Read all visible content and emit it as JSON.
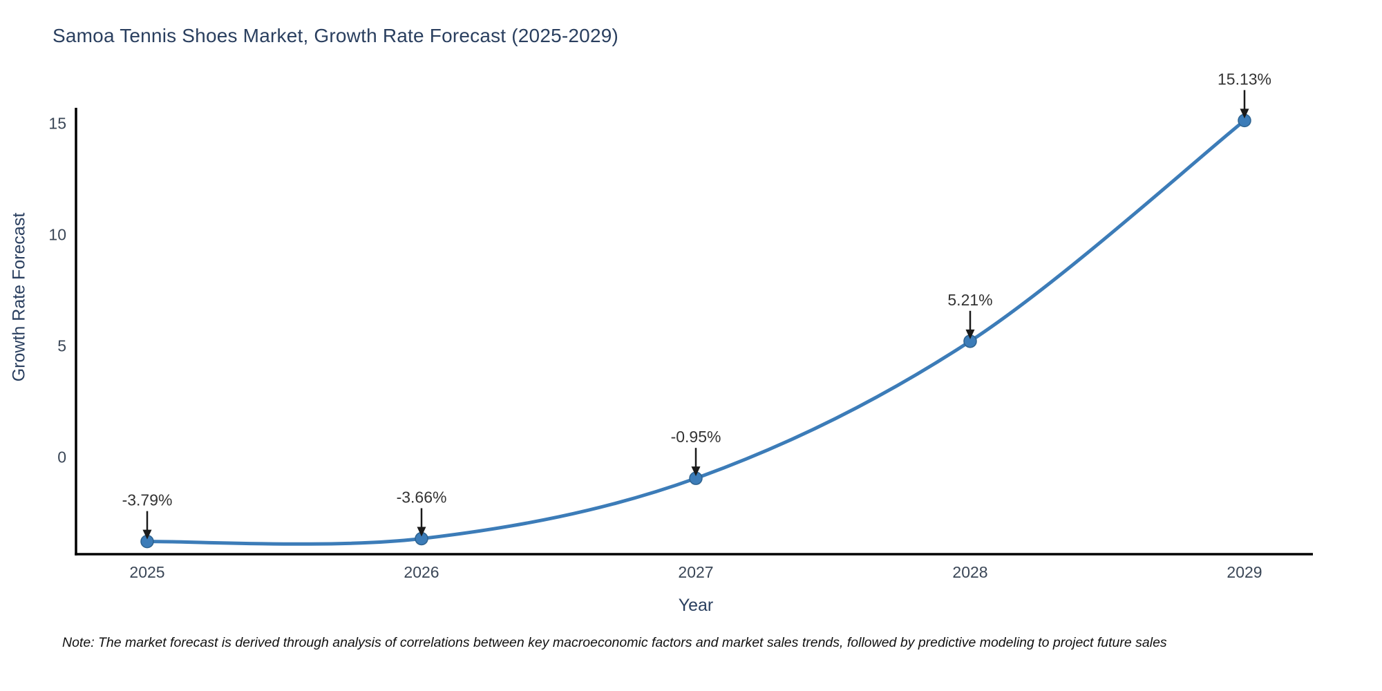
{
  "chart_data": {
    "type": "line",
    "title": "Samoa Tennis Shoes Market, Growth Rate Forecast (2025-2029)",
    "xlabel": "Year",
    "ylabel": "Growth Rate Forecast",
    "categories": [
      "2025",
      "2026",
      "2027",
      "2028",
      "2029"
    ],
    "series": [
      {
        "name": "Growth Rate Forecast",
        "values": [
          -3.79,
          -3.66,
          -0.95,
          5.21,
          15.13
        ]
      }
    ],
    "point_labels": [
      "-3.79%",
      "-3.66%",
      "-0.95%",
      "5.21%",
      "15.13%"
    ],
    "y_ticks": [
      0,
      5,
      10,
      15
    ],
    "ylim": [
      -4.36,
      15.7
    ],
    "line_shape": "spline",
    "grid": false,
    "legend_position": "none",
    "colors": {
      "line": "#3c7cb8",
      "marker": "#3c7cb8",
      "marker_edge": "#2d628f",
      "axis": "#000000",
      "title_text": "#2a3f5f",
      "tick_text": "#3a4656",
      "annotation_text": "#333333",
      "arrow": "#1a1a1a",
      "background": "#ffffff"
    }
  },
  "note": {
    "text": "Note: The market forecast is derived through analysis of correlations between key macroeconomic factors and market sales trends, followed by predictive modeling to project future sales"
  }
}
